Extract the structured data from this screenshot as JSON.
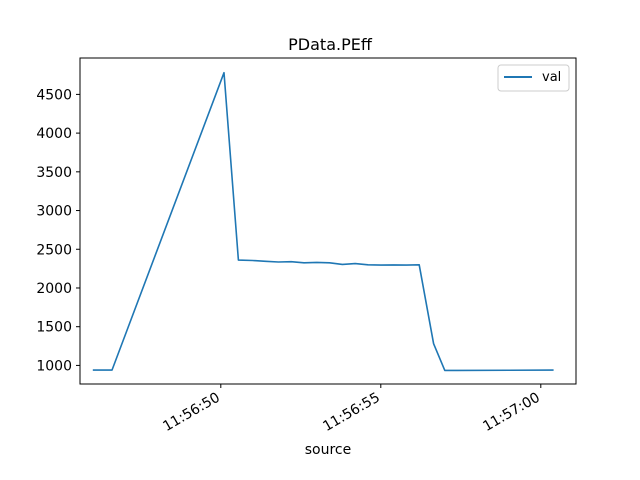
{
  "chart_data": {
    "type": "line",
    "title": "PData.PEff",
    "xlabel": "source",
    "ylabel": "",
    "x_ticks": [
      {
        "value": 50,
        "label": "11:56:50"
      },
      {
        "value": 55,
        "label": "11:56:55"
      },
      {
        "value": 60,
        "label": "11:57:00"
      }
    ],
    "y_ticks": [
      1000,
      1500,
      2000,
      2500,
      3000,
      3500,
      4000,
      4500
    ],
    "xlim": [
      45.6,
      61.1
    ],
    "ylim": [
      760,
      4970
    ],
    "legend": "top-right",
    "grid": false,
    "series": [
      {
        "name": "val",
        "color": "#1f77b4",
        "x": [
          46.0,
          46.6,
          50.1,
          50.55,
          51.0,
          51.4,
          51.8,
          52.2,
          52.6,
          53.0,
          53.4,
          53.8,
          54.2,
          54.6,
          55.0,
          55.4,
          55.8,
          56.2,
          56.65,
          57.0,
          57.4,
          60.4
        ],
        "y": [
          940,
          940,
          4780,
          2360,
          2355,
          2345,
          2335,
          2340,
          2325,
          2330,
          2325,
          2305,
          2315,
          2300,
          2295,
          2298,
          2295,
          2300,
          1280,
          935,
          935,
          940
        ]
      }
    ]
  }
}
